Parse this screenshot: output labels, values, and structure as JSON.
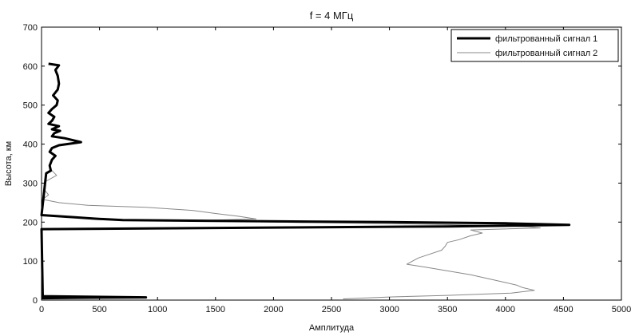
{
  "chart_data": {
    "type": "line",
    "title": "f = 4 МГц",
    "xlabel": "Амплитуда",
    "ylabel": "Высота, км",
    "xlim": [
      0,
      5000
    ],
    "ylim": [
      0,
      700
    ],
    "xticks": [
      0,
      500,
      1000,
      1500,
      2000,
      2500,
      3000,
      3500,
      4000,
      4500,
      5000
    ],
    "yticks": [
      0,
      100,
      200,
      300,
      400,
      500,
      600,
      700
    ],
    "grid": false,
    "legend_position": "top-right",
    "series": [
      {
        "name": "фильтрованный сигнал 1",
        "color": "#000000",
        "style": "thick",
        "points": [
          [
            60,
            606
          ],
          [
            150,
            602
          ],
          [
            120,
            590
          ],
          [
            140,
            575
          ],
          [
            150,
            555
          ],
          [
            140,
            540
          ],
          [
            100,
            525
          ],
          [
            140,
            512
          ],
          [
            130,
            500
          ],
          [
            90,
            490
          ],
          [
            60,
            480
          ],
          [
            110,
            470
          ],
          [
            90,
            460
          ],
          [
            60,
            452
          ],
          [
            150,
            446
          ],
          [
            90,
            438
          ],
          [
            160,
            434
          ],
          [
            110,
            428
          ],
          [
            90,
            420
          ],
          [
            200,
            415
          ],
          [
            340,
            405
          ],
          [
            150,
            397
          ],
          [
            90,
            390
          ],
          [
            70,
            380
          ],
          [
            120,
            370
          ],
          [
            90,
            360
          ],
          [
            70,
            345
          ],
          [
            80,
            332
          ],
          [
            40,
            325
          ],
          [
            0,
            218
          ],
          [
            300,
            212
          ],
          [
            450,
            209
          ],
          [
            700,
            205
          ],
          [
            1500,
            203
          ],
          [
            3000,
            200
          ],
          [
            4000,
            197
          ],
          [
            4550,
            193
          ],
          [
            3500,
            189
          ],
          [
            2000,
            186
          ],
          [
            0,
            182
          ],
          [
            10,
            10
          ],
          [
            300,
            9
          ],
          [
            600,
            8
          ],
          [
            900,
            7
          ],
          [
            300,
            6
          ],
          [
            0,
            5
          ]
        ]
      },
      {
        "name": "фильтрованный сигнал 2",
        "color": "#888888",
        "style": "thin",
        "points": [
          [
            80,
            335
          ],
          [
            130,
            320
          ],
          [
            40,
            305
          ],
          [
            20,
            285
          ],
          [
            60,
            270
          ],
          [
            10,
            258
          ],
          [
            150,
            250
          ],
          [
            400,
            243
          ],
          [
            900,
            238
          ],
          [
            1300,
            230
          ],
          [
            1500,
            222
          ],
          [
            1700,
            215
          ],
          [
            1850,
            208
          ],
          [
            1500,
            205
          ],
          [
            1300,
            203
          ],
          [
            2000,
            200
          ],
          [
            3000,
            196
          ],
          [
            3800,
            192
          ],
          [
            4200,
            188
          ],
          [
            4300,
            185
          ],
          [
            3700,
            180
          ],
          [
            3800,
            172
          ],
          [
            3700,
            165
          ],
          [
            3600,
            155
          ],
          [
            3500,
            148
          ],
          [
            3480,
            138
          ],
          [
            3450,
            128
          ],
          [
            3350,
            118
          ],
          [
            3250,
            108
          ],
          [
            3200,
            100
          ],
          [
            3150,
            92
          ],
          [
            3300,
            85
          ],
          [
            3500,
            75
          ],
          [
            3700,
            65
          ],
          [
            3850,
            55
          ],
          [
            4000,
            45
          ],
          [
            4100,
            38
          ],
          [
            4150,
            32
          ],
          [
            4250,
            25
          ],
          [
            4050,
            18
          ],
          [
            3500,
            12
          ],
          [
            3000,
            8
          ],
          [
            2600,
            3
          ]
        ]
      }
    ]
  }
}
